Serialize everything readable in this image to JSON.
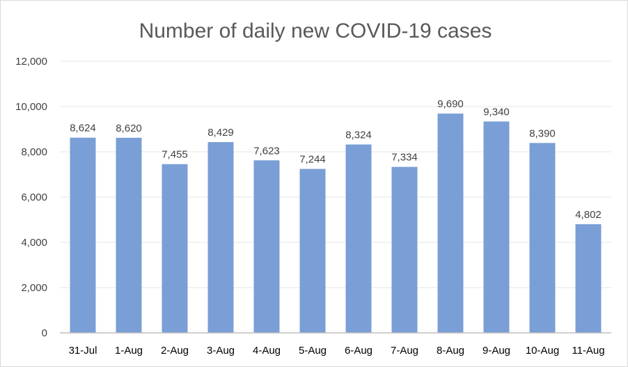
{
  "chart_data": {
    "type": "bar",
    "title": "Number of daily new COVID-19 cases",
    "xlabel": "",
    "ylabel": "",
    "categories": [
      "31-Jul",
      "1-Aug",
      "2-Aug",
      "3-Aug",
      "4-Aug",
      "5-Aug",
      "6-Aug",
      "7-Aug",
      "8-Aug",
      "9-Aug",
      "10-Aug",
      "11-Aug"
    ],
    "values": [
      8624,
      8620,
      7455,
      8429,
      7623,
      7244,
      8324,
      7334,
      9690,
      9340,
      8390,
      4802
    ],
    "data_labels": [
      "8,624",
      "8,620",
      "7,455",
      "8,429",
      "7,623",
      "7,244",
      "8,324",
      "7,334",
      "9,690",
      "9,340",
      "8,390",
      "4,802"
    ],
    "ylim": [
      0,
      12000
    ],
    "yticks": [
      0,
      2000,
      4000,
      6000,
      8000,
      10000,
      12000
    ],
    "ytick_labels": [
      "0",
      "2,000",
      "4,000",
      "6,000",
      "8,000",
      "10,000",
      "12,000"
    ],
    "grid": true,
    "legend": "none",
    "bar_color": "#7a9ed6"
  }
}
